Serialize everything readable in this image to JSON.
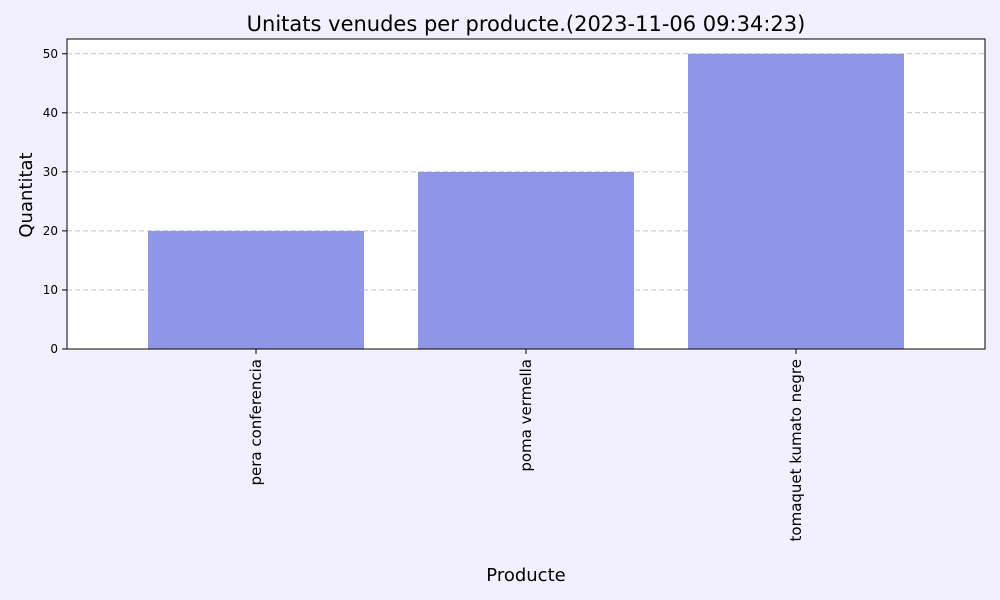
{
  "chart_data": {
    "type": "bar",
    "title": "Unitats venudes per producte.(2023-11-06 09:34:23)",
    "xlabel": "Producte",
    "ylabel": "Quantitat",
    "categories": [
      "pera conferencia",
      "poma vermella",
      "tomaquet kumato negre"
    ],
    "values": [
      20,
      30,
      50
    ],
    "ylim": [
      0,
      52.5
    ],
    "yticks": [
      0,
      10,
      20,
      30,
      40,
      50
    ],
    "grid": "y-dashed",
    "bar_color": "#8f95e8",
    "figure_background": "#f2f0ff",
    "plot_background": "#ffffff"
  }
}
